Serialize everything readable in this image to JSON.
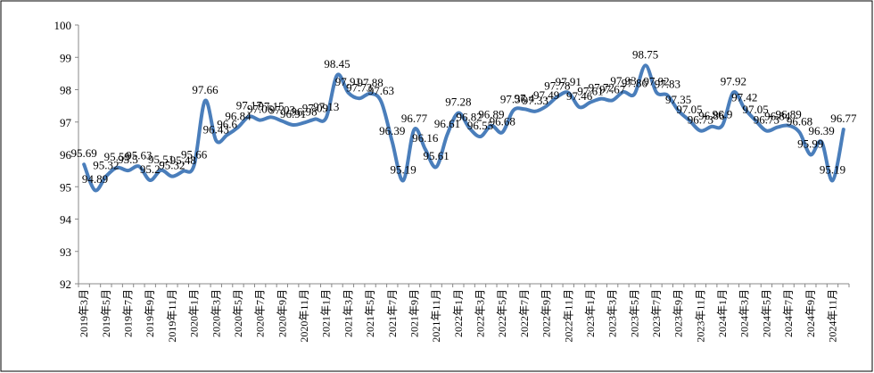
{
  "chart_data": {
    "type": "line",
    "categories": [
      "2019年3月",
      null,
      "2019年5月",
      null,
      "2019年7月",
      null,
      "2019年9月",
      null,
      "2019年11月",
      null,
      "2020年1月",
      null,
      "2020年3月",
      null,
      "2020年5月",
      null,
      "2020年7月",
      null,
      "2020年9月",
      null,
      "2020年11月",
      null,
      "2021年1月",
      null,
      "2021年3月",
      null,
      "2021年5月",
      null,
      "2021年7月",
      null,
      "2021年9月",
      null,
      "2021年11月",
      null,
      "2022年1月",
      null,
      "2022年3月",
      null,
      "2022年5月",
      null,
      "2022年7月",
      null,
      "2022年9月",
      null,
      "2022年11月",
      null,
      "2023年1月",
      null,
      "2023年3月",
      null,
      "2023年5月",
      null,
      "2023年7月",
      null,
      "2023年9月",
      null,
      "2023年11月",
      null,
      "2024年1月",
      null,
      "2024年3月",
      null,
      "2024年5月",
      null,
      "2024年7月",
      null,
      "2024年9月",
      null,
      "2024年11月",
      null
    ],
    "series": [
      {
        "name": null,
        "color": "#4a7ebb",
        "values": [
          95.69,
          94.89,
          95.32,
          95.59,
          95.5,
          95.63,
          95.2,
          95.51,
          95.32,
          95.48,
          95.66,
          97.66,
          96.43,
          96.6,
          96.84,
          97.17,
          97.06,
          97.15,
          97.03,
          96.91,
          96.98,
          97.09,
          97.13,
          98.45,
          97.91,
          97.73,
          97.88,
          97.63,
          96.39,
          95.19,
          96.77,
          96.16,
          95.61,
          96.61,
          97.28,
          96.82,
          96.55,
          96.89,
          96.68,
          97.36,
          97.4,
          97.33,
          97.49,
          97.78,
          97.91,
          97.46,
          97.61,
          97.72,
          97.67,
          97.93,
          97.86,
          98.75,
          97.92,
          97.83,
          97.35,
          97.05,
          96.73,
          96.86,
          96.9,
          97.92,
          97.42,
          97.05,
          96.73,
          96.84,
          96.89,
          96.68,
          95.99,
          96.39,
          95.19,
          96.77
        ]
      }
    ],
    "ylim": [
      92,
      100
    ],
    "yticks": [
      92,
      93,
      94,
      95,
      96,
      97,
      98,
      99,
      100
    ],
    "grid": false
  }
}
